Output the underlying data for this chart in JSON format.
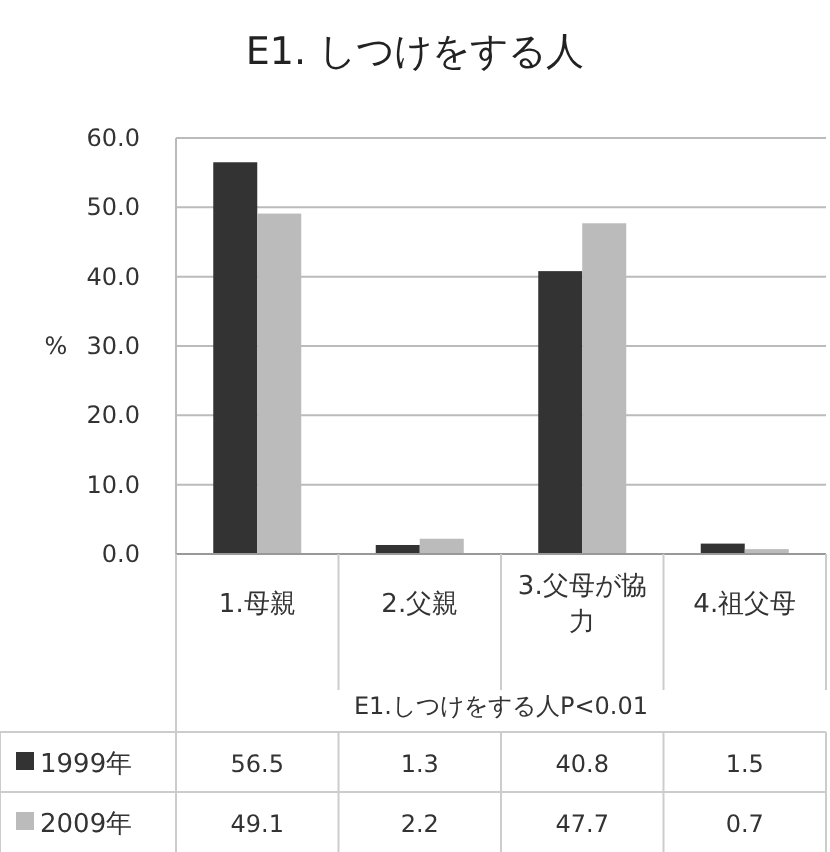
{
  "chart_data": {
    "type": "bar",
    "title": "E1. しつけをする人",
    "ylabel": "%",
    "xlabel": "E1.しつけをする人P<0.01",
    "categories": [
      "1.母親",
      "2.父親",
      "3.父母が協力",
      "4.祖父母"
    ],
    "series": [
      {
        "name": "1999年",
        "color": "#333333",
        "values": [
          56.5,
          1.3,
          40.8,
          1.5
        ]
      },
      {
        "name": "2009年",
        "color": "#bbbbbb",
        "values": [
          49.1,
          2.2,
          47.7,
          0.7
        ]
      }
    ],
    "ylim": [
      0,
      60
    ],
    "yticks": [
      {
        "value": 0,
        "label": "0.0"
      },
      {
        "value": 10,
        "label": "10.0"
      },
      {
        "value": 20,
        "label": "20.0"
      },
      {
        "value": 30,
        "label": "30.0"
      },
      {
        "value": 40,
        "label": "40.0"
      },
      {
        "value": 50,
        "label": "50.0"
      },
      {
        "value": 60,
        "label": "60.0"
      }
    ],
    "grid": "y",
    "data_labels": true,
    "legend": "bottom left"
  }
}
